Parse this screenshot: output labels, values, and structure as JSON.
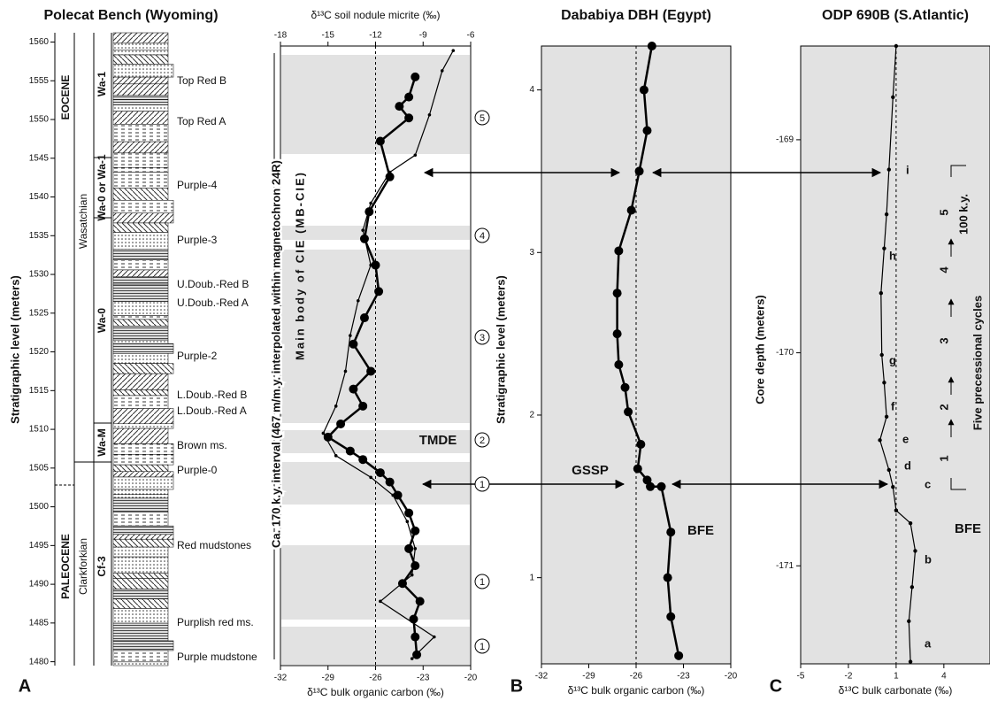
{
  "chart_data": [
    {
      "type": "column",
      "title": "Polecat Bench (Wyoming)",
      "panel_label": "A",
      "y_label": "Stratigraphic level (meters)",
      "ylim": [
        1479.5,
        1561.2
      ],
      "yticks": [
        1480,
        1485,
        1490,
        1495,
        1500,
        1505,
        1510,
        1515,
        1520,
        1525,
        1530,
        1535,
        1540,
        1545,
        1550,
        1555,
        1560
      ],
      "epochs": [
        "EOCENE",
        "PALEOCENE"
      ],
      "stages": [
        "Wasatchian",
        "Clarkforkian"
      ],
      "zones": [
        "Wa-1",
        "Wa-0 or Wa-1",
        "Wa-0",
        "Wa-M",
        "Cf-3"
      ],
      "units": [
        "Top Red B",
        "Top Red A",
        "Purple-4",
        "Purple-3",
        "U.Doub.-Red B",
        "U.Doub.-Red A",
        "Purple-2",
        "L.Doub.-Red B",
        "L.Doub.-Red A",
        "Brown ms.",
        "Purple-0",
        "Red mudstones",
        "Purplish red ms.",
        "Purple mudstone"
      ]
    },
    {
      "type": "profile",
      "x_label": "δ¹³C bulk organic carbon (‰)",
      "xlim": [
        -32,
        -20
      ],
      "xticks": [
        -32,
        -29,
        -26,
        -23,
        -20
      ],
      "x2_label": "δ¹³C soil nodule micrite (‰)",
      "x2lim": [
        -18,
        -6
      ],
      "x2ticks": [
        -18,
        -15,
        -12,
        -9,
        -6
      ],
      "ylim": [
        1479.5,
        1561.2
      ],
      "reference_x": -26,
      "series": [
        {
          "color": "#000000",
          "marker": "large",
          "y": [
            1555.5,
            1552.9,
            1551.7,
            1550.2,
            1547.2,
            1542.6,
            1538.1,
            1534.6,
            1531.2,
            1527.8,
            1524.4,
            1521.0,
            1517.5,
            1515.2,
            1513.0,
            1510.7,
            1509.0,
            1507.2,
            1506.1,
            1504.4,
            1503.2,
            1501.5,
            1499.2,
            1496.9,
            1494.6,
            1492.4,
            1490.1,
            1487.8,
            1485.5,
            1483.2,
            1480.9
          ],
          "values": [
            -23.5,
            -23.9,
            -24.5,
            -23.9,
            -25.7,
            -25.1,
            -26.4,
            -26.7,
            -26.0,
            -25.8,
            -26.7,
            -27.4,
            -26.3,
            -27.4,
            -26.8,
            -28.2,
            -29.0,
            -27.6,
            -26.8,
            -25.7,
            -25.1,
            -24.6,
            -23.9,
            -23.5,
            -23.9,
            -23.5,
            -24.3,
            -23.2,
            -23.6,
            -23.5,
            -23.4
          ]
        },
        {
          "color": "#000000",
          "axis": "x2",
          "marker": "small",
          "y": [
            1558.9,
            1556.3,
            1550.6,
            1545.4,
            1543.2,
            1539.2,
            1535.7,
            1531.2,
            1526.6,
            1522.1,
            1517.5,
            1513.0,
            1509.5,
            1506.6,
            1503.8,
            1501.5,
            1498.1,
            1494.6,
            1491.2,
            1487.8,
            1483.2,
            1480.4
          ],
          "values": [
            -7.1,
            -7.8,
            -8.6,
            -9.5,
            -11.1,
            -12.3,
            -12.8,
            -12.3,
            -13.1,
            -13.6,
            -13.9,
            -14.5,
            -15.3,
            -14.5,
            -12.3,
            -10.9,
            -10.0,
            -9.5,
            -9.7,
            -11.7,
            -8.3,
            -9.7
          ]
        }
      ],
      "annotations": [
        "Ca. 170 k.y. interval (467 m/m.y. interpolated within magnetochron 24R)",
        "Main body of CIE (MB-CIE)",
        "TMDE"
      ],
      "cycle_labels": [
        "5",
        "4",
        "3",
        "2",
        "1",
        "1",
        "1"
      ]
    },
    {
      "type": "profile",
      "title": "Dababiya DBH (Egypt)",
      "panel_label": "B",
      "y_label": "Stratigraphic level (meters)",
      "x_label": "δ¹³C bulk organic carbon (‰)",
      "xlim": [
        -32,
        -20
      ],
      "xticks": [
        -32,
        -29,
        -26,
        -23,
        -20
      ],
      "ylim": [
        0.47,
        4.27
      ],
      "yticks": [
        1,
        2,
        3,
        4
      ],
      "reference_x": -26,
      "series": [
        {
          "color": "#000000",
          "marker": "large",
          "y": [
            4.27,
            4.0,
            3.75,
            3.5,
            3.26,
            3.01,
            2.75,
            2.5,
            2.31,
            2.17,
            2.02,
            1.82,
            1.67,
            1.6,
            1.56,
            1.56,
            1.28,
            1.0,
            0.76,
            0.52
          ],
          "values": [
            -25.0,
            -25.5,
            -25.3,
            -25.8,
            -26.3,
            -27.1,
            -27.2,
            -27.2,
            -27.1,
            -26.7,
            -26.5,
            -25.7,
            -25.9,
            -25.3,
            -25.1,
            -24.4,
            -23.8,
            -24.0,
            -23.8,
            -23.3
          ]
        }
      ],
      "annotations": [
        "GSSP",
        "BFE"
      ]
    },
    {
      "type": "profile",
      "title": "ODP 690B (S.Atlantic)",
      "panel_label": "C",
      "y_label": "Core depth (meters)",
      "x_label": "δ¹³C bulk carbonate (‰)",
      "xlim": [
        -5,
        6.9
      ],
      "xticks": [
        -5,
        -2,
        1,
        4
      ],
      "ylim": [
        -171.46,
        -168.56
      ],
      "yticks": [
        -169,
        -170,
        -171
      ],
      "reference_x": 1,
      "series": [
        {
          "color": "#000000",
          "marker": "medium",
          "y": [
            -168.56,
            -168.8,
            -169.14,
            -169.35,
            -169.51,
            -169.72,
            -170.01,
            -170.14,
            -170.3,
            -170.41,
            -170.55,
            -170.63,
            -170.74,
            -170.8,
            -170.93,
            -171.1,
            -171.26,
            -171.45
          ],
          "values": [
            1.0,
            0.8,
            0.55,
            0.4,
            0.25,
            0.05,
            0.1,
            0.25,
            0.4,
            -0.02,
            0.55,
            0.8,
            1.0,
            1.9,
            2.2,
            2.0,
            1.8,
            1.9
          ]
        }
      ],
      "annotations": [
        "BFE",
        "Five precessional cycles",
        "100 k.y."
      ],
      "levels": [
        "a",
        "b",
        "c",
        "d",
        "e",
        "f",
        "g",
        "h",
        "i"
      ],
      "cycles": [
        "1",
        "2",
        "3",
        "4",
        "5"
      ]
    }
  ]
}
